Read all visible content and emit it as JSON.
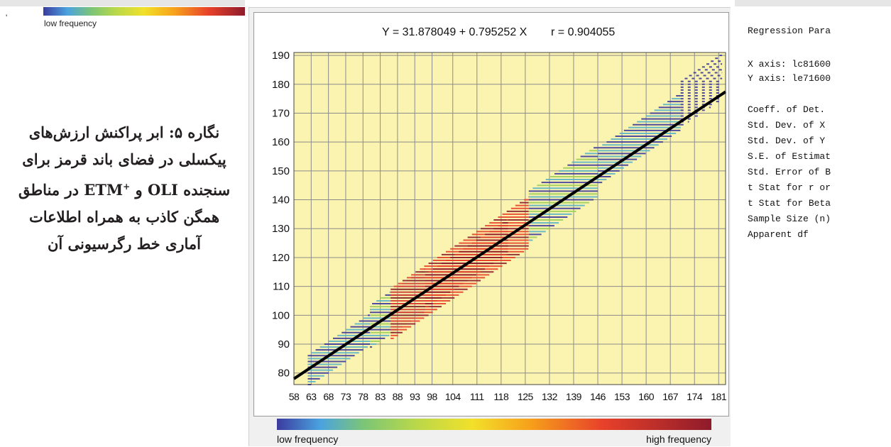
{
  "top_legend": {
    "label": "low frequency",
    "tick": "'"
  },
  "caption": {
    "line1": "نگاره ۵: ابر پراکنش ارزش‌های",
    "line2": "پیکسلی در فضای باند قرمز برای",
    "line3_pre": "سنجنده OLI و ",
    "line3_etm": "ETM",
    "line3_sup": "+",
    "line3_post": " در مناطق",
    "line4": "همگن کاذب به همراه اطلاعات",
    "line5": "آماری خط رگرسیونی آن"
  },
  "colors": {
    "plot_bg": "#fbf3b0",
    "grid": "#8c8c8c",
    "regression": "#000000",
    "freq_low": "#3b3b9e",
    "freq_mid_low": "#5ab4c8",
    "freq_mid": "#9ccf5a",
    "freq_high": "#e8412a",
    "freq_max": "#8e1b2b"
  },
  "chart_data": {
    "type": "scatter",
    "equation": "Y = 31.878049 + 0.795252 X",
    "r_label": "r = 0.904055",
    "intercept": 31.878049,
    "slope": 0.795252,
    "xlim": [
      58,
      183
    ],
    "ylim": [
      76,
      191
    ],
    "x_ticks": [
      58,
      63,
      68,
      73,
      78,
      83,
      88,
      93,
      98,
      104,
      111,
      118,
      125,
      132,
      139,
      146,
      153,
      160,
      167,
      174,
      181
    ],
    "y_ticks": [
      80,
      90,
      100,
      110,
      120,
      130,
      140,
      150,
      160,
      170,
      180,
      190
    ],
    "grid": true,
    "density_segments": [
      {
        "x_start": 62,
        "x_end": 80,
        "y_min_off": -6,
        "y_max_off": 5,
        "level": "low"
      },
      {
        "x_start": 80,
        "x_end": 96,
        "y_min_off": -7,
        "y_max_off": 8,
        "level": "mid"
      },
      {
        "x_start": 86,
        "x_end": 126,
        "y_min_off": -9,
        "y_max_off": 9,
        "level": "high"
      },
      {
        "x_start": 96,
        "x_end": 120,
        "y_min_off": -6,
        "y_max_off": 6,
        "level": "max"
      },
      {
        "x_start": 126,
        "x_end": 146,
        "y_min_off": -7,
        "y_max_off": 11,
        "level": "mid"
      },
      {
        "x_start": 146,
        "x_end": 170,
        "y_min_off": -3,
        "y_max_off": 10,
        "level": "low"
      },
      {
        "x_start": 170,
        "x_end": 182,
        "y_min_off": -2,
        "y_max_off": 14,
        "level": "sparse"
      }
    ],
    "legend": {
      "low": "low frequency",
      "high": "high frequency",
      "placement": "bottom"
    }
  },
  "right_panel": {
    "lines": [
      "Regression Para",
      "",
      "X axis: lc81600",
      "Y axis: le71600",
      "",
      "Coeff. of Det.",
      "Std. Dev. of X",
      "Std. Dev. of Y",
      "S.E. of Estimat",
      "Std. Error of B",
      "t Stat for r or",
      "t Stat for Beta",
      "Sample Size (n)",
      "Apparent df"
    ]
  }
}
